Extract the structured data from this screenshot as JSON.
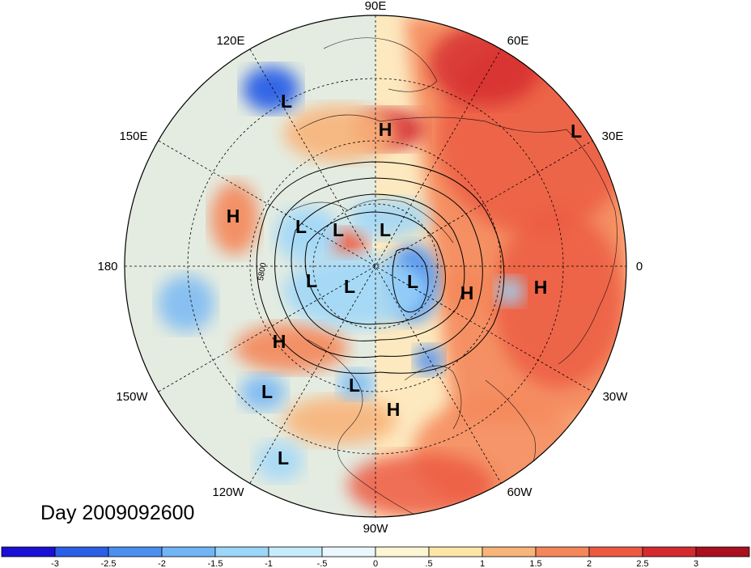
{
  "date_label": "Day 2009092600",
  "longitude_labels": {
    "e90": "90E",
    "e60": "60E",
    "e120": "120E",
    "e30": "30E",
    "e150": "150E",
    "zero": "0",
    "d180": "180",
    "w30": "30W",
    "w150": "150W",
    "w60": "60W",
    "w120": "120W",
    "w90": "90W"
  },
  "contour_label": "5800",
  "pressure_centers": [
    {
      "id": "low-1",
      "letter": "L"
    },
    {
      "id": "high-1",
      "letter": "H"
    },
    {
      "id": "low-2",
      "letter": "L"
    },
    {
      "id": "high-2",
      "letter": "H"
    },
    {
      "id": "low-3",
      "letter": "L"
    },
    {
      "id": "low-4",
      "letter": "L"
    },
    {
      "id": "low-5",
      "letter": "L"
    },
    {
      "id": "low-6",
      "letter": "L"
    },
    {
      "id": "low-7",
      "letter": "L"
    },
    {
      "id": "low-8",
      "letter": "L"
    },
    {
      "id": "high-3",
      "letter": "H"
    },
    {
      "id": "high-4",
      "letter": "H"
    },
    {
      "id": "high-5",
      "letter": "H"
    },
    {
      "id": "low-9",
      "letter": "L"
    },
    {
      "id": "low-10",
      "letter": "L"
    },
    {
      "id": "high-6",
      "letter": "H"
    },
    {
      "id": "low-11",
      "letter": "L"
    }
  ],
  "colorbar": {
    "colors": [
      "#1a0fd4",
      "#2b5fe6",
      "#4b8ff0",
      "#72b5f5",
      "#9cd6f9",
      "#c6ecfb",
      "#eaf7fc",
      "#fcf6d5",
      "#fde6a6",
      "#f9b47a",
      "#f4875a",
      "#ec5a42",
      "#d42a2e",
      "#a8101e"
    ],
    "tick_labels": [
      "-3",
      "-2.5",
      "-2",
      "-1.5",
      "-1",
      "-.5",
      "0",
      ".5",
      "1",
      "1.5",
      "2",
      "2.5",
      "3"
    ]
  }
}
